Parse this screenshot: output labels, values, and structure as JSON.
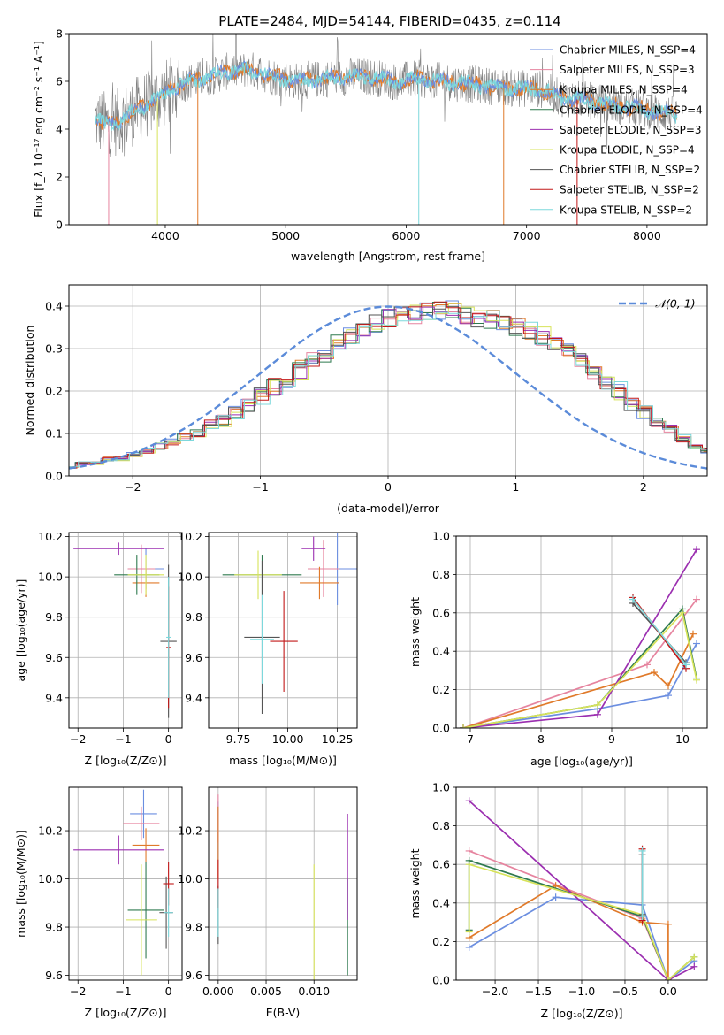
{
  "colors": {
    "chabrier_miles": "#6b8ee0",
    "salpeter_miles": "#e6849f",
    "kroupa_miles": "#e07a2a",
    "chabrier_elodie": "#2f7a4f",
    "salpeter_elodie": "#9b2fb0",
    "kroupa_elodie": "#d7e35a",
    "chabrier_stelib": "#555555",
    "salpeter_stelib": "#c21818",
    "kroupa_stelib": "#7dd8dc",
    "normal": "#5b8bd9"
  },
  "chart_data": [
    {
      "id": "spectrum",
      "type": "line",
      "title": "PLATE=2484, MJD=54144, FIBERID=0435, z=0.114",
      "xlabel": "wavelength [Angstrom, rest frame]",
      "ylabel": "Flux [f_λ 10⁻¹⁷ erg cm⁻² s⁻¹ A⁻¹]",
      "xlim": [
        3200,
        8500
      ],
      "ylim": [
        0,
        8
      ],
      "xticks": [
        4000,
        5000,
        6000,
        7000,
        8000
      ],
      "yticks": [
        0,
        2,
        4,
        6,
        8
      ],
      "legend_position": "upper-right",
      "legend": [
        {
          "label": "Chabrier MILES, N_SSP=4",
          "color": "chabrier_miles"
        },
        {
          "label": "Salpeter MILES, N_SSP=3",
          "color": "salpeter_miles"
        },
        {
          "label": "Kroupa MILES, N_SSP=4",
          "color": "kroupa_miles"
        },
        {
          "label": "Chabrier ELODIE, N_SSP=4",
          "color": "chabrier_elodie"
        },
        {
          "label": "Salpeter ELODIE, N_SSP=3",
          "color": "salpeter_elodie"
        },
        {
          "label": "Kroupa ELODIE, N_SSP=4",
          "color": "kroupa_elodie"
        },
        {
          "label": "Chabrier STELIB, N_SSP=2",
          "color": "chabrier_stelib"
        },
        {
          "label": "Salpeter STELIB, N_SSP=2",
          "color": "salpeter_stelib"
        },
        {
          "label": "Kroupa STELIB, N_SSP=2",
          "color": "kroupa_stelib"
        }
      ],
      "continuum": {
        "x": [
          3420,
          3500,
          3600,
          3700,
          3800,
          3900,
          4000,
          4100,
          4200,
          4300,
          4500,
          4700,
          4900,
          5100,
          5300,
          5500,
          5700,
          5900,
          6100,
          6300,
          6500,
          6700,
          6900,
          7100,
          7300,
          7500,
          7700,
          7900,
          8100,
          8250
        ],
        "y": [
          4.4,
          4.2,
          4.3,
          4.6,
          4.9,
          5.2,
          5.5,
          5.8,
          6.0,
          6.1,
          6.4,
          6.5,
          6.2,
          6.0,
          6.1,
          6.2,
          6.2,
          6.0,
          6.1,
          6.0,
          5.9,
          5.8,
          5.7,
          5.7,
          5.3,
          5.2,
          5.0,
          4.9,
          4.7,
          4.6
        ]
      },
      "dips": [
        {
          "x": 3530,
          "y": 0,
          "color": "salpeter_miles"
        },
        {
          "x": 3935,
          "y": 0,
          "color": "kroupa_elodie"
        },
        {
          "x": 4270,
          "y": 0,
          "color": "kroupa_miles"
        },
        {
          "x": 6105,
          "y": 0,
          "color": "kroupa_stelib"
        },
        {
          "x": 6810,
          "y": 0,
          "color": "kroupa_miles"
        },
        {
          "x": 7420,
          "y": 0,
          "color": "salpeter_stelib"
        }
      ]
    },
    {
      "id": "residuals",
      "type": "histogram",
      "xlabel": "(data-model)/error",
      "ylabel": "Normed distribution",
      "xlim": [
        -2.5,
        2.5
      ],
      "ylim": [
        0,
        0.45
      ],
      "xticks": [
        -2,
        -1,
        0,
        1,
        2
      ],
      "yticks": [
        0.0,
        0.1,
        0.2,
        0.3,
        0.4
      ],
      "bin_width": 0.1,
      "envelope_values": [
        0.02,
        0.03,
        0.03,
        0.04,
        0.04,
        0.05,
        0.06,
        0.07,
        0.08,
        0.09,
        0.1,
        0.12,
        0.13,
        0.15,
        0.17,
        0.19,
        0.21,
        0.23,
        0.25,
        0.27,
        0.29,
        0.31,
        0.33,
        0.35,
        0.36,
        0.37,
        0.38,
        0.38,
        0.39,
        0.39,
        0.39,
        0.38,
        0.37,
        0.37,
        0.36,
        0.35,
        0.34,
        0.33,
        0.31,
        0.29,
        0.27,
        0.25,
        0.22,
        0.2,
        0.17,
        0.15,
        0.13,
        0.11,
        0.09,
        0.07,
        0.06
      ],
      "legend": [
        {
          "label": "𝒩(0, 1)",
          "color": "normal",
          "style": "dashed"
        }
      ]
    },
    {
      "id": "age_vs_Z",
      "type": "errorbar",
      "xlabel": "Z [log₁₀(Z/Z⊙)]",
      "ylabel": "age [log₁₀(age/yr)]",
      "xlim": [
        -2.2,
        0.3
      ],
      "ylim": [
        9.25,
        10.22
      ],
      "xticks": [
        -2,
        -1,
        0
      ],
      "yticks": [
        9.4,
        9.6,
        9.8,
        10.0,
        10.2
      ],
      "points": [
        {
          "s": "chabrier_miles",
          "x": -0.5,
          "xe": 0.4,
          "y": 10.04,
          "ye": 0.1
        },
        {
          "s": "salpeter_miles",
          "x": -0.6,
          "xe": 0.3,
          "y": 10.04,
          "ye": 0.12
        },
        {
          "s": "kroupa_miles",
          "x": -0.5,
          "xe": 0.3,
          "y": 9.97,
          "ye": 0.07
        },
        {
          "s": "chabrier_elodie",
          "x": -0.7,
          "xe": 0.5,
          "y": 10.01,
          "ye": 0.1
        },
        {
          "s": "salpeter_elodie",
          "x": -1.1,
          "xe": 1.0,
          "y": 10.14,
          "ye": 0.03
        },
        {
          "s": "kroupa_elodie",
          "x": -0.5,
          "xe": 0.4,
          "y": 10.01,
          "ye": 0.1
        },
        {
          "s": "chabrier_stelib",
          "x": 0.0,
          "xe": 0.18,
          "y": 9.68,
          "ye": 0.38
        },
        {
          "s": "salpeter_stelib",
          "x": 0.0,
          "xe": 0.05,
          "y": 9.65,
          "ye": 0.3
        },
        {
          "s": "kroupa_stelib",
          "x": 0.0,
          "xe": 0.05,
          "y": 9.7,
          "ye": 0.3
        }
      ]
    },
    {
      "id": "age_vs_mass",
      "type": "errorbar",
      "xlabel": "mass [log₁₀(M/M⊙)]",
      "ylabel": "",
      "xlim": [
        9.6,
        10.35
      ],
      "ylim": [
        9.25,
        10.22
      ],
      "xticks": [
        9.75,
        10.0,
        10.25
      ],
      "yticks": [
        9.4,
        9.6,
        9.8,
        10.0,
        10.2
      ],
      "points": [
        {
          "s": "chabrier_miles",
          "x": 10.25,
          "xe": 0.12,
          "y": 10.04,
          "ye": 0.18
        },
        {
          "s": "salpeter_miles",
          "x": 10.18,
          "xe": 0.08,
          "y": 10.04,
          "ye": 0.14
        },
        {
          "s": "kroupa_miles",
          "x": 10.16,
          "xe": 0.1,
          "y": 9.97,
          "ye": 0.08
        },
        {
          "s": "chabrier_elodie",
          "x": 9.87,
          "xe": 0.2,
          "y": 10.01,
          "ye": 0.1
        },
        {
          "s": "salpeter_elodie",
          "x": 10.13,
          "xe": 0.06,
          "y": 10.14,
          "ye": 0.06
        },
        {
          "s": "kroupa_elodie",
          "x": 9.85,
          "xe": 0.12,
          "y": 10.01,
          "ye": 0.12
        },
        {
          "s": "chabrier_stelib",
          "x": 9.87,
          "xe": 0.09,
          "y": 9.7,
          "ye": 0.38
        },
        {
          "s": "salpeter_stelib",
          "x": 9.98,
          "xe": 0.07,
          "y": 9.68,
          "ye": 0.25
        },
        {
          "s": "kroupa_stelib",
          "x": 9.87,
          "xe": 0.06,
          "y": 9.69,
          "ye": 0.22
        }
      ]
    },
    {
      "id": "mass_weight_vs_age",
      "type": "line",
      "xlabel": "age [log₁₀(age/yr)]",
      "ylabel": "mass weight",
      "xlim": [
        6.8,
        10.35
      ],
      "ylim": [
        0,
        1
      ],
      "xticks": [
        7,
        8,
        9,
        10
      ],
      "yticks": [
        0.0,
        0.2,
        0.4,
        0.6,
        0.8,
        1.0
      ],
      "series": [
        {
          "s": "chabrier_miles",
          "x": [
            6.9,
            8.8,
            9.8,
            10.2
          ],
          "y": [
            0.0,
            0.1,
            0.17,
            0.44
          ]
        },
        {
          "s": "salpeter_miles",
          "x": [
            6.9,
            9.5,
            10.2
          ],
          "y": [
            0.0,
            0.33,
            0.67
          ]
        },
        {
          "s": "kroupa_miles",
          "x": [
            6.9,
            9.6,
            9.8,
            10.15
          ],
          "y": [
            0.0,
            0.29,
            0.22,
            0.49
          ]
        },
        {
          "s": "chabrier_elodie",
          "x": [
            6.9,
            8.8,
            10.0,
            10.2
          ],
          "y": [
            0.0,
            0.12,
            0.62,
            0.26
          ]
        },
        {
          "s": "salpeter_elodie",
          "x": [
            6.9,
            8.8,
            10.2
          ],
          "y": [
            0.0,
            0.07,
            0.93
          ]
        },
        {
          "s": "kroupa_elodie",
          "x": [
            6.9,
            8.8,
            10.0,
            10.2
          ],
          "y": [
            0.0,
            0.12,
            0.6,
            0.25
          ]
        },
        {
          "s": "chabrier_stelib",
          "x": [
            9.3,
            10.05
          ],
          "y": [
            0.65,
            0.34
          ]
        },
        {
          "s": "salpeter_stelib",
          "x": [
            9.3,
            10.05
          ],
          "y": [
            0.68,
            0.31
          ]
        },
        {
          "s": "kroupa_stelib",
          "x": [
            9.3,
            10.05
          ],
          "y": [
            0.67,
            0.33
          ]
        }
      ]
    },
    {
      "id": "mass_vs_Z",
      "type": "errorbar",
      "xlabel": "Z [log₁₀(Z/Z⊙)]",
      "ylabel": "mass [log₁₀(M/M⊙)]",
      "xlim": [
        -2.2,
        0.3
      ],
      "ylim": [
        9.58,
        10.38
      ],
      "xticks": [
        -2,
        -1,
        0
      ],
      "yticks": [
        9.6,
        9.8,
        10.0,
        10.2
      ],
      "points": [
        {
          "s": "chabrier_miles",
          "x": -0.55,
          "xe": 0.3,
          "y": 10.27,
          "ye": 0.1
        },
        {
          "s": "salpeter_miles",
          "x": -0.6,
          "xe": 0.4,
          "y": 10.23,
          "ye": 0.07
        },
        {
          "s": "kroupa_miles",
          "x": -0.5,
          "xe": 0.3,
          "y": 10.14,
          "ye": 0.07
        },
        {
          "s": "chabrier_elodie",
          "x": -0.5,
          "xe": 0.4,
          "y": 9.87,
          "ye": 0.2
        },
        {
          "s": "salpeter_elodie",
          "x": -1.1,
          "xe": 1.0,
          "y": 10.12,
          "ye": 0.06
        },
        {
          "s": "kroupa_elodie",
          "x": -0.6,
          "xe": 0.35,
          "y": 9.83,
          "ye": 0.23
        },
        {
          "s": "chabrier_stelib",
          "x": -0.05,
          "xe": 0.15,
          "y": 9.86,
          "ye": 0.15
        },
        {
          "s": "salpeter_stelib",
          "x": 0.0,
          "xe": 0.12,
          "y": 9.98,
          "ye": 0.09
        },
        {
          "s": "kroupa_stelib",
          "x": 0.0,
          "xe": 0.1,
          "y": 9.86,
          "ye": 0.1
        }
      ]
    },
    {
      "id": "mass_vs_ebv",
      "type": "errorbar",
      "xlabel": "E(B-V)",
      "ylabel": "",
      "xlim": [
        -0.001,
        0.0145
      ],
      "ylim": [
        9.58,
        10.38
      ],
      "xticks": [
        0.0,
        0.005,
        0.01
      ],
      "yticks": [
        9.6,
        9.8,
        10.0,
        10.2
      ],
      "points": [
        {
          "s": "chabrier_miles",
          "x": 0.0,
          "xe": 0,
          "y": 10.2,
          "ye": 0.12
        },
        {
          "s": "salpeter_miles",
          "x": 0.0,
          "xe": 0,
          "y": 10.25,
          "ye": 0.1
        },
        {
          "s": "kroupa_miles",
          "x": 0.0,
          "xe": 0,
          "y": 10.15,
          "ye": 0.15
        },
        {
          "s": "chabrier_elodie",
          "x": 0.0135,
          "xe": 0,
          "y": 9.8,
          "ye": 0.2
        },
        {
          "s": "salpeter_elodie",
          "x": 0.0135,
          "xe": 0,
          "y": 10.05,
          "ye": 0.22
        },
        {
          "s": "kroupa_elodie",
          "x": 0.01,
          "xe": 0,
          "y": 9.8,
          "ye": 0.26
        },
        {
          "s": "chabrier_stelib",
          "x": 0.0,
          "xe": 0,
          "y": 9.85,
          "ye": 0.12
        },
        {
          "s": "salpeter_stelib",
          "x": 0.0,
          "xe": 0,
          "y": 9.98,
          "ye": 0.1
        },
        {
          "s": "kroupa_stelib",
          "x": 0.0,
          "xe": 0,
          "y": 9.86,
          "ye": 0.1
        }
      ]
    },
    {
      "id": "mass_weight_vs_Z",
      "type": "line",
      "xlabel": "Z [log₁₀(Z/Z⊙)]",
      "ylabel": "mass weight",
      "xlim": [
        -2.45,
        0.45
      ],
      "ylim": [
        0,
        1
      ],
      "xticks": [
        -2.0,
        -1.5,
        -1.0,
        -0.5,
        0.0
      ],
      "yticks": [
        0.0,
        0.2,
        0.4,
        0.6,
        0.8,
        1.0
      ],
      "series": [
        {
          "s": "chabrier_miles",
          "x": [
            -2.3,
            -1.3,
            -0.3,
            0.0,
            0.3
          ],
          "y": [
            0.17,
            0.43,
            0.39,
            0.0,
            0.1
          ]
        },
        {
          "s": "salpeter_miles",
          "x": [
            -2.3,
            -0.3,
            0.0
          ],
          "y": [
            0.67,
            0.32,
            0.0
          ]
        },
        {
          "s": "kroupa_miles",
          "x": [
            -2.3,
            -1.3,
            -0.3,
            0.0,
            0.0
          ],
          "y": [
            0.22,
            0.49,
            0.3,
            0.29,
            0.0
          ]
        },
        {
          "s": "chabrier_elodie",
          "x": [
            -2.3,
            -2.3,
            -0.3,
            0.0,
            0.3
          ],
          "y": [
            0.26,
            0.62,
            0.33,
            0.0,
            0.12
          ]
        },
        {
          "s": "salpeter_elodie",
          "x": [
            -2.3,
            0.0,
            0.3
          ],
          "y": [
            0.93,
            0.0,
            0.07
          ]
        },
        {
          "s": "kroupa_elodie",
          "x": [
            -2.3,
            -2.3,
            -0.3,
            0.0,
            0.3
          ],
          "y": [
            0.25,
            0.6,
            0.34,
            0.0,
            0.12
          ]
        },
        {
          "s": "chabrier_stelib",
          "x": [
            -0.3,
            -0.3
          ],
          "y": [
            0.65,
            0.34
          ]
        },
        {
          "s": "salpeter_stelib",
          "x": [
            -0.3,
            -0.3
          ],
          "y": [
            0.68,
            0.31
          ]
        },
        {
          "s": "kroupa_stelib",
          "x": [
            -0.3,
            -0.3
          ],
          "y": [
            0.67,
            0.33
          ]
        }
      ]
    }
  ]
}
